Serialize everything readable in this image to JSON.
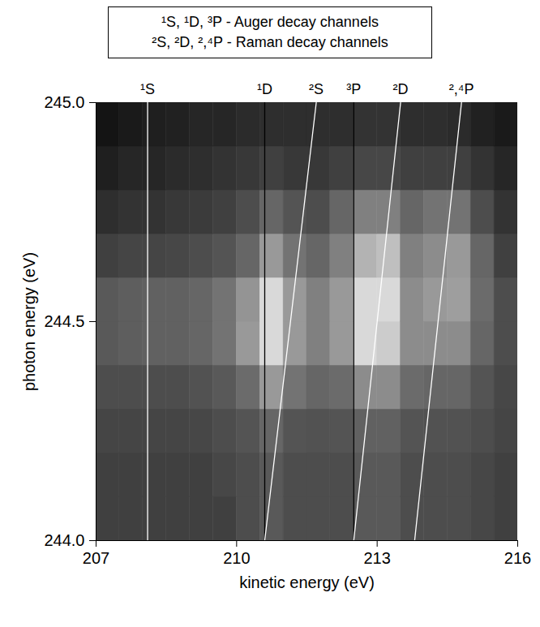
{
  "chart_data": {
    "type": "heatmap",
    "x_label": "kinetic energy (eV)",
    "y_label": "photon energy (eV)",
    "xlim": [
      207,
      216
    ],
    "ylim": [
      244,
      245
    ],
    "xticks": [
      207,
      210,
      213,
      216
    ],
    "yticks": [
      244,
      244.5,
      245
    ],
    "annotations": [
      "¹S, ¹D, ³P  -  Auger decay channels",
      "²S, ²D, ²,⁴P - Raman decay channels"
    ],
    "cells": {
      "x_bins": [
        207,
        207.5,
        208,
        208.5,
        209,
        209.5,
        210,
        210.5,
        211,
        211.5,
        212,
        212.5,
        213,
        213.5,
        214,
        214.5,
        215,
        215.5,
        216
      ],
      "y_bins": [
        244,
        244.1,
        244.2,
        244.3,
        244.4,
        244.5,
        244.6,
        244.7,
        244.8,
        244.9,
        245
      ],
      "zlim": [
        0,
        1
      ],
      "values": [
        [
          0.25,
          0.25,
          0.25,
          0.25,
          0.25,
          0.25,
          0.3,
          0.35,
          0.3,
          0.3,
          0.3,
          0.35,
          0.35,
          0.3,
          0.3,
          0.3,
          0.28,
          0.25
        ],
        [
          0.25,
          0.25,
          0.25,
          0.25,
          0.25,
          0.28,
          0.3,
          0.35,
          0.3,
          0.3,
          0.3,
          0.35,
          0.35,
          0.3,
          0.3,
          0.3,
          0.28,
          0.25
        ],
        [
          0.27,
          0.27,
          0.27,
          0.27,
          0.28,
          0.3,
          0.33,
          0.4,
          0.33,
          0.32,
          0.33,
          0.38,
          0.38,
          0.33,
          0.32,
          0.32,
          0.3,
          0.27
        ],
        [
          0.3,
          0.3,
          0.3,
          0.3,
          0.32,
          0.35,
          0.42,
          0.6,
          0.45,
          0.4,
          0.42,
          0.55,
          0.55,
          0.42,
          0.4,
          0.4,
          0.33,
          0.28
        ],
        [
          0.35,
          0.37,
          0.38,
          0.38,
          0.4,
          0.45,
          0.6,
          0.85,
          0.6,
          0.5,
          0.6,
          0.85,
          0.8,
          0.55,
          0.55,
          0.55,
          0.4,
          0.3
        ],
        [
          0.35,
          0.37,
          0.38,
          0.38,
          0.4,
          0.45,
          0.58,
          0.85,
          0.6,
          0.5,
          0.6,
          0.85,
          0.85,
          0.55,
          0.6,
          0.62,
          0.42,
          0.3
        ],
        [
          0.25,
          0.27,
          0.27,
          0.28,
          0.3,
          0.33,
          0.4,
          0.6,
          0.45,
          0.4,
          0.5,
          0.7,
          0.75,
          0.5,
          0.55,
          0.6,
          0.4,
          0.25
        ],
        [
          0.18,
          0.2,
          0.2,
          0.22,
          0.23,
          0.25,
          0.3,
          0.4,
          0.33,
          0.3,
          0.4,
          0.5,
          0.5,
          0.4,
          0.45,
          0.45,
          0.3,
          0.2
        ],
        [
          0.12,
          0.15,
          0.15,
          0.17,
          0.18,
          0.2,
          0.22,
          0.25,
          0.22,
          0.22,
          0.25,
          0.28,
          0.28,
          0.25,
          0.25,
          0.25,
          0.2,
          0.15
        ],
        [
          0.08,
          0.1,
          0.12,
          0.13,
          0.15,
          0.15,
          0.17,
          0.18,
          0.18,
          0.18,
          0.18,
          0.2,
          0.2,
          0.18,
          0.18,
          0.17,
          0.13,
          0.1
        ]
      ]
    },
    "series": [
      {
        "name": "¹S",
        "color": "#ffffff",
        "line_style": "solid",
        "x": [
          208.1,
          208.1
        ],
        "y": [
          244,
          245
        ]
      },
      {
        "name": "¹D",
        "color": "#000000",
        "line_style": "solid",
        "x": [
          210.6,
          210.6
        ],
        "y": [
          244,
          245
        ]
      },
      {
        "name": "²S",
        "color": "#ffffff",
        "line_style": "solid",
        "x": [
          210.6,
          211.7
        ],
        "y": [
          244,
          245
        ]
      },
      {
        "name": "³P",
        "color": "#000000",
        "line_style": "solid",
        "x": [
          212.5,
          212.5
        ],
        "y": [
          244,
          245
        ]
      },
      {
        "name": "²D",
        "color": "#ffffff",
        "line_style": "solid",
        "x": [
          212.5,
          213.5
        ],
        "y": [
          244,
          245
        ]
      },
      {
        "name": "²,⁴P",
        "color": "#ffffff",
        "line_style": "solid",
        "x": [
          213.8,
          214.8
        ],
        "y": [
          244,
          245
        ]
      }
    ]
  }
}
